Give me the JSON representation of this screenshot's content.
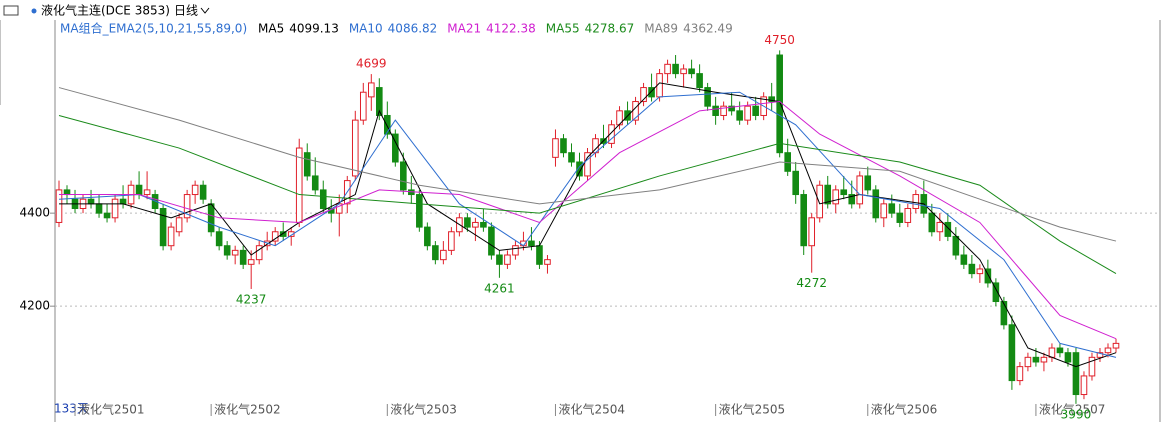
{
  "chart_data": {
    "type": "candlestick",
    "title": "液化气主连(DCE 3853)",
    "period": "日线",
    "indicator": "MA组合_EMA2(5,10,21,55,89,0)",
    "visible_bars": "133天",
    "up_color": "#e0202a",
    "down_color": "#138a13",
    "ylim": [
      3966,
      4811
    ],
    "yticks": [
      4400,
      4200
    ],
    "grid": true,
    "xticks": [
      {
        "value": 2,
        "label": "液化气2501"
      },
      {
        "value": 19,
        "label": "液化气2502"
      },
      {
        "value": 41,
        "label": "液化气2503"
      },
      {
        "value": 62,
        "label": "液化气2504"
      },
      {
        "value": 82,
        "label": "液化气2505"
      },
      {
        "value": 101,
        "label": "液化气2506"
      },
      {
        "value": 122,
        "label": "液化气2507"
      }
    ],
    "ohlc": [
      [
        4380,
        4470,
        4370,
        4450
      ],
      [
        4450,
        4460,
        4420,
        4440
      ],
      [
        4430,
        4450,
        4400,
        4410
      ],
      [
        4410,
        4440,
        4400,
        4430
      ],
      [
        4430,
        4450,
        4410,
        4420
      ],
      [
        4420,
        4440,
        4390,
        4400
      ],
      [
        4400,
        4420,
        4380,
        4390
      ],
      [
        4390,
        4440,
        4380,
        4430
      ],
      [
        4430,
        4460,
        4410,
        4420
      ],
      [
        4420,
        4470,
        4410,
        4460
      ],
      [
        4460,
        4490,
        4430,
        4440
      ],
      [
        4440,
        4490,
        4430,
        4450
      ],
      [
        4440,
        4450,
        4400,
        4410
      ],
      [
        4410,
        4420,
        4320,
        4330
      ],
      [
        4330,
        4380,
        4320,
        4370
      ],
      [
        4360,
        4400,
        4350,
        4390
      ],
      [
        4390,
        4450,
        4380,
        4440
      ],
      [
        4440,
        4470,
        4420,
        4460
      ],
      [
        4460,
        4470,
        4420,
        4430
      ],
      [
        4420,
        4430,
        4350,
        4360
      ],
      [
        4360,
        4370,
        4320,
        4330
      ],
      [
        4330,
        4340,
        4300,
        4310
      ],
      [
        4310,
        4330,
        4290,
        4320
      ],
      [
        4320,
        4330,
        4280,
        4290
      ],
      [
        4290,
        4320,
        4237,
        4300
      ],
      [
        4300,
        4340,
        4290,
        4330
      ],
      [
        4330,
        4360,
        4320,
        4340
      ],
      [
        4340,
        4370,
        4330,
        4360
      ],
      [
        4360,
        4380,
        4340,
        4350
      ],
      [
        4350,
        4370,
        4330,
        4360
      ],
      [
        4380,
        4560,
        4370,
        4540
      ],
      [
        4530,
        4550,
        4470,
        4480
      ],
      [
        4480,
        4520,
        4440,
        4450
      ],
      [
        4450,
        4470,
        4400,
        4410
      ],
      [
        4410,
        4430,
        4380,
        4400
      ],
      [
        4400,
        4440,
        4350,
        4420
      ],
      [
        4420,
        4480,
        4400,
        4470
      ],
      [
        4480,
        4620,
        4470,
        4600
      ],
      [
        4600,
        4680,
        4590,
        4660
      ],
      [
        4650,
        4699,
        4620,
        4680
      ],
      [
        4670,
        4690,
        4600,
        4610
      ],
      [
        4610,
        4640,
        4560,
        4570
      ],
      [
        4570,
        4580,
        4500,
        4510
      ],
      [
        4510,
        4530,
        4440,
        4450
      ],
      [
        4450,
        4480,
        4420,
        4440
      ],
      [
        4440,
        4450,
        4360,
        4370
      ],
      [
        4370,
        4380,
        4320,
        4330
      ],
      [
        4330,
        4340,
        4290,
        4300
      ],
      [
        4300,
        4340,
        4290,
        4320
      ],
      [
        4320,
        4370,
        4310,
        4360
      ],
      [
        4360,
        4400,
        4350,
        4390
      ],
      [
        4390,
        4400,
        4360,
        4370
      ],
      [
        4370,
        4390,
        4340,
        4380
      ],
      [
        4380,
        4410,
        4360,
        4370
      ],
      [
        4370,
        4380,
        4300,
        4310
      ],
      [
        4310,
        4320,
        4261,
        4290
      ],
      [
        4290,
        4320,
        4280,
        4310
      ],
      [
        4310,
        4340,
        4300,
        4330
      ],
      [
        4330,
        4360,
        4320,
        4340
      ],
      [
        4340,
        4370,
        4320,
        4330
      ],
      [
        4330,
        4340,
        4280,
        4290
      ],
      [
        4290,
        4310,
        4270,
        4300
      ],
      [
        4520,
        4580,
        4500,
        4560
      ],
      [
        4560,
        4570,
        4520,
        4530
      ],
      [
        4530,
        4550,
        4500,
        4510
      ],
      [
        4510,
        4530,
        4470,
        4480
      ],
      [
        4480,
        4540,
        4470,
        4530
      ],
      [
        4530,
        4570,
        4520,
        4560
      ],
      [
        4560,
        4590,
        4540,
        4550
      ],
      [
        4550,
        4600,
        4540,
        4590
      ],
      [
        4590,
        4630,
        4580,
        4620
      ],
      [
        4620,
        4640,
        4590,
        4600
      ],
      [
        4600,
        4650,
        4590,
        4640
      ],
      [
        4640,
        4680,
        4630,
        4670
      ],
      [
        4670,
        4700,
        4640,
        4650
      ],
      [
        4650,
        4710,
        4640,
        4700
      ],
      [
        4700,
        4730,
        4680,
        4720
      ],
      [
        4720,
        4740,
        4690,
        4700
      ],
      [
        4700,
        4720,
        4670,
        4710
      ],
      [
        4710,
        4730,
        4690,
        4700
      ],
      [
        4700,
        4720,
        4660,
        4670
      ],
      [
        4670,
        4680,
        4620,
        4630
      ],
      [
        4630,
        4650,
        4590,
        4610
      ],
      [
        4610,
        4640,
        4600,
        4630
      ],
      [
        4630,
        4660,
        4610,
        4620
      ],
      [
        4620,
        4640,
        4590,
        4600
      ],
      [
        4600,
        4640,
        4590,
        4630
      ],
      [
        4630,
        4650,
        4600,
        4610
      ],
      [
        4610,
        4660,
        4600,
        4650
      ],
      [
        4650,
        4680,
        4620,
        4640
      ],
      [
        4740,
        4750,
        4520,
        4530
      ],
      [
        4530,
        4560,
        4480,
        4490
      ],
      [
        4490,
        4510,
        4420,
        4440
      ],
      [
        4440,
        4450,
        4310,
        4330
      ],
      [
        4330,
        4400,
        4272,
        4390
      ],
      [
        4390,
        4470,
        4380,
        4460
      ],
      [
        4460,
        4480,
        4410,
        4420
      ],
      [
        4420,
        4460,
        4400,
        4450
      ],
      [
        4450,
        4480,
        4430,
        4440
      ],
      [
        4440,
        4470,
        4410,
        4420
      ],
      [
        4420,
        4490,
        4410,
        4480
      ],
      [
        4480,
        4500,
        4440,
        4450
      ],
      [
        4450,
        4460,
        4380,
        4390
      ],
      [
        4390,
        4430,
        4370,
        4420
      ],
      [
        4420,
        4440,
        4390,
        4400
      ],
      [
        4400,
        4420,
        4370,
        4380
      ],
      [
        4380,
        4420,
        4370,
        4410
      ],
      [
        4410,
        4450,
        4400,
        4440
      ],
      [
        4440,
        4470,
        4390,
        4400
      ],
      [
        4400,
        4420,
        4350,
        4360
      ],
      [
        4360,
        4400,
        4340,
        4380
      ],
      [
        4380,
        4400,
        4340,
        4350
      ],
      [
        4350,
        4370,
        4300,
        4310
      ],
      [
        4310,
        4330,
        4280,
        4290
      ],
      [
        4290,
        4310,
        4260,
        4270
      ],
      [
        4270,
        4290,
        4250,
        4280
      ],
      [
        4280,
        4300,
        4240,
        4250
      ],
      [
        4250,
        4260,
        4200,
        4210
      ],
      [
        4210,
        4220,
        4150,
        4160
      ],
      [
        4160,
        4180,
        4020,
        4040
      ],
      [
        4040,
        4080,
        4030,
        4070
      ],
      [
        4070,
        4100,
        4060,
        4090
      ],
      [
        4090,
        4110,
        4070,
        4080
      ],
      [
        4080,
        4100,
        4060,
        4090
      ],
      [
        4090,
        4120,
        4080,
        4110
      ],
      [
        4110,
        4120,
        4090,
        4100
      ],
      [
        4100,
        4110,
        4070,
        4080
      ],
      [
        4100,
        4110,
        3990,
        4010
      ],
      [
        4010,
        4060,
        4000,
        4050
      ],
      [
        4050,
        4100,
        4040,
        4090
      ],
      [
        4090,
        4110,
        4080,
        4100
      ],
      [
        4100,
        4120,
        4090,
        4110
      ],
      [
        4110,
        4130,
        4100,
        4120
      ]
    ],
    "annotations": [
      {
        "x": 24,
        "value": 4237
      },
      {
        "x": 39,
        "value": 4699
      },
      {
        "x": 55,
        "value": 4261
      },
      {
        "x": 90,
        "value": 4750
      },
      {
        "x": 94,
        "value": 4272
      },
      {
        "x": 127,
        "value": 3990
      }
    ],
    "series": [
      {
        "name": "MA5",
        "last": 4099.13,
        "color": "#000000",
        "x": [
          0,
          8,
          14,
          19,
          24,
          30,
          37,
          40,
          46,
          55,
          60,
          66,
          75,
          82,
          90,
          95,
          100,
          108,
          115,
          121,
          127,
          132
        ],
        "values": [
          4420,
          4420,
          4390,
          4420,
          4310,
          4380,
          4440,
          4620,
          4420,
          4320,
          4330,
          4520,
          4680,
          4660,
          4640,
          4420,
          4440,
          4420,
          4300,
          4110,
          4070,
          4100
        ]
      },
      {
        "name": "MA10",
        "last": 4086.82,
        "color": "#2f6fd0",
        "x": [
          0,
          10,
          20,
          27,
          35,
          42,
          50,
          58,
          65,
          75,
          85,
          92,
          100,
          110,
          118,
          125,
          132
        ],
        "values": [
          4430,
          4440,
          4370,
          4330,
          4420,
          4600,
          4420,
          4330,
          4500,
          4650,
          4660,
          4590,
          4440,
          4410,
          4300,
          4120,
          4090
        ]
      },
      {
        "name": "MA21",
        "last": 4122.38,
        "color": "#d020d0",
        "x": [
          0,
          10,
          20,
          30,
          40,
          50,
          60,
          70,
          80,
          90,
          95,
          105,
          115,
          125,
          132
        ],
        "values": [
          4440,
          4440,
          4390,
          4380,
          4450,
          4440,
          4380,
          4530,
          4620,
          4640,
          4570,
          4480,
          4380,
          4180,
          4130
        ]
      },
      {
        "name": "MA55",
        "last": 4278.67,
        "color": "#1a8a1a",
        "x": [
          0,
          15,
          30,
          45,
          60,
          75,
          90,
          105,
          115,
          125,
          132
        ],
        "values": [
          4610,
          4540,
          4440,
          4420,
          4400,
          4480,
          4550,
          4510,
          4460,
          4340,
          4270
        ]
      },
      {
        "name": "MA89",
        "last": 4362.49,
        "color": "#808080",
        "x": [
          0,
          15,
          30,
          45,
          60,
          75,
          90,
          105,
          115,
          125,
          132
        ],
        "values": [
          4670,
          4600,
          4520,
          4460,
          4420,
          4450,
          4510,
          4490,
          4430,
          4370,
          4340
        ]
      }
    ]
  }
}
